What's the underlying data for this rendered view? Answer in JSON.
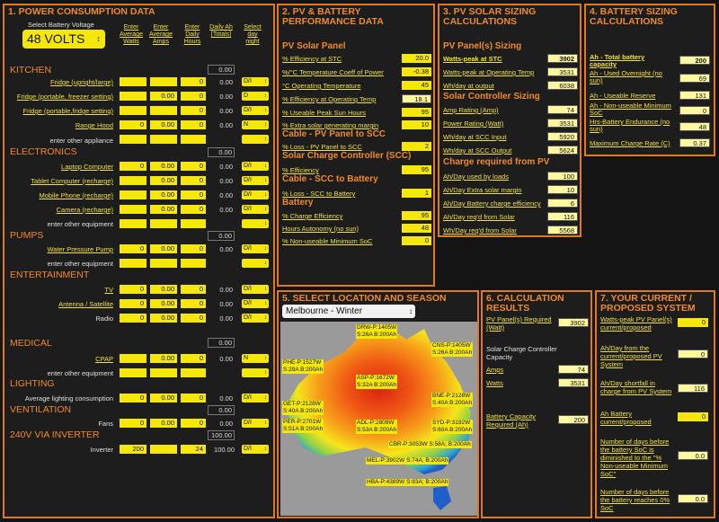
{
  "p1": {
    "title": "1. POWER CONSUMPTION DATA",
    "voltage_label": "Select Battery Voltage",
    "voltage_value": "48 VOLTS",
    "headers": [
      "Enter Average Watts",
      "Enter Average Amps",
      "Enter Daily Hours",
      "Daily Ah [Totals]",
      "Select day night"
    ],
    "sections": {
      "kitchen": "KITCHEN",
      "electronics": "ELECTRONICS",
      "pumps": "PUMPS",
      "entertainment": "ENTERTAINMENT",
      "medical": "MEDICAL",
      "lighting": "LIGHTING",
      "ventilation": "VENTILATION",
      "inverter": "240V via INVERTER"
    },
    "totals": {
      "kitchen": "0.00",
      "electronics": "0.00",
      "pumps": "0.00",
      "entertainment": "0.00",
      "medical": "0.00",
      "lighting": "0.00",
      "ventilation": "0.00",
      "inverter": "100.00"
    },
    "rows": {
      "r1": {
        "label": "Fridge (upright/large)",
        "amps": "",
        "hours": "0",
        "ah": "0.00",
        "sel": "D/I"
      },
      "r2": {
        "label": "Fridge (portable, freezer setting)",
        "amps": "0.00",
        "hours": "0",
        "ah": "0.00",
        "sel": "D"
      },
      "r3": {
        "label": "Fridge (portable,fridge setting)",
        "amps": "",
        "hours": "0",
        "ah": "0.00",
        "sel": "D/I"
      },
      "r4": {
        "label": "Range Hood",
        "watts": "0",
        "amps": "0.00",
        "hours": "0",
        "ah": "0.00",
        "sel": "N"
      },
      "r5": {
        "label": "enter other appliance"
      },
      "r6": {
        "label": "Laptop Computer",
        "watts": "0",
        "amps": "0.00",
        "hours": "0",
        "ah": "0.00",
        "sel": "D/I"
      },
      "r7": {
        "label": "Tablet Computer (recharge)",
        "amps": "0.00",
        "hours": "0",
        "ah": "0.00",
        "sel": "D/I"
      },
      "r8": {
        "label": "Mobile Phone (recharge)",
        "amps": "0.00",
        "hours": "0",
        "ah": "0.00",
        "sel": "D/I"
      },
      "r9": {
        "label": "Camera (recharge)",
        "amps": "0.00",
        "hours": "0",
        "ah": "0.00",
        "sel": "D/I"
      },
      "r10": {
        "label": "enter other equipment"
      },
      "r11": {
        "label": "Water Pressure Pump",
        "watts": "0",
        "amps": "0.00",
        "hours": "0",
        "ah": "0.00",
        "sel": "D/I"
      },
      "r12": {
        "label": "enter other equipment"
      },
      "r13": {
        "label": "TV",
        "watts": "0",
        "amps": "0.00",
        "hours": "0",
        "ah": "0.00",
        "sel": "D/I"
      },
      "r14": {
        "label": "Antenna / Satellite",
        "watts": "0",
        "amps": "0.00",
        "hours": "0",
        "ah": "0.00",
        "sel": "D/I"
      },
      "r15": {
        "label": "Radio",
        "watts": "0",
        "amps": "0.00",
        "hours": "0",
        "ah": "0.00",
        "sel": "D/I"
      },
      "r16": {
        "label": "CPAP",
        "amps": "0.00",
        "hours": "0",
        "ah": "0.00",
        "sel": "N"
      },
      "r17": {
        "label": "enter other equipment"
      },
      "r18": {
        "label": "Average lighting consumption",
        "watts": "0",
        "amps": "0.00",
        "hours": "0",
        "ah": "0.00",
        "sel": "D/I"
      },
      "r19": {
        "label": "Fans",
        "watts": "0",
        "amps": "0.00",
        "hours": "0",
        "ah": "0.00",
        "sel": "D/I"
      },
      "r20": {
        "label": "Inverter",
        "watts": "200",
        "hours": "24",
        "ah": "100.00",
        "sel": "D/I"
      }
    }
  },
  "p2": {
    "title": "2. PV & BATTERY PERFORMANCE DATA",
    "pv_head": "PV Solar Panel",
    "pv": [
      {
        "label": "% Efficiency at STC",
        "value": "20.0"
      },
      {
        "label": "%/°C Temperature Coeff of Power",
        "value": "-0.38"
      },
      {
        "label": "°C Operating Temperature",
        "value": "45"
      },
      {
        "label": "% Efficiency at Operating Temp",
        "value": "18.1"
      },
      {
        "label": "% Useable Peak Sun Hours",
        "value": "95"
      },
      {
        "label": "% Extra solar generating margin",
        "value": "10"
      }
    ],
    "cable1_head": "Cable - PV Panel to SCC",
    "cable1": {
      "label": "% Loss - PV Panel to SCC",
      "value": "2"
    },
    "scc_head": "Solar Charge Controller (SCC)",
    "scc": {
      "label": "% Efficiency",
      "value": "95"
    },
    "cable2_head": "Cable - SCC to Battery",
    "cable2": {
      "label": "% Loss - SCC to Battery",
      "value": "1"
    },
    "batt_head": "Battery",
    "batt": [
      {
        "label": "% Charge Efficiency",
        "value": "95"
      },
      {
        "label": "Hours Autonomy (no sun)",
        "value": "48"
      },
      {
        "label": "% Non-useable Minimum SoC",
        "value": "0"
      }
    ]
  },
  "p3": {
    "title": "3. PV SOLAR SIZING CALCULATIONS",
    "pv_head": "PV Panel(s) Sizing",
    "pv": [
      {
        "label": "Watts-peak at STC",
        "value": "3902"
      },
      {
        "label": "Watts-peak at Operating Temp",
        "value": "3531"
      },
      {
        "label": "Wh/day at output",
        "value": "6038"
      }
    ],
    "scc_head": "Solar Controller Sizing",
    "scc": [
      {
        "label": "Amp Rating (Amp)",
        "value": "74"
      },
      {
        "label": "Power Rating (Watt)",
        "value": "3531"
      },
      {
        "label": "Wh/day at SCC Input",
        "value": "5920"
      },
      {
        "label": "Wh/day at SCC Output",
        "value": "5624"
      }
    ],
    "charge_head": "Charge required from PV",
    "charge": [
      {
        "label": "Ah/Day used by loads",
        "value": "100"
      },
      {
        "label": "Ah/Day Extra solar margin",
        "value": "10"
      },
      {
        "label": "Ah/Day Battery charge efficiency",
        "value": "6"
      },
      {
        "label": "Ah/Day req'd from Solar",
        "value": "116"
      },
      {
        "label": "Wh/Day req'd from Solar",
        "value": "5568"
      }
    ]
  },
  "p4": {
    "title": "4. BATTERY SIZING CALCULATIONS",
    "rows": [
      {
        "label": "Ah - Total battery capacity",
        "value": "200"
      },
      {
        "label": "Ah - Used Overnight (no sun)",
        "value": "69"
      },
      {
        "label": "Ah - Useable Reserve",
        "value": "131"
      },
      {
        "label": "Ah - Non-useable Minimum SoC",
        "value": "0"
      },
      {
        "label": "Hrs-Battery Endurance (no sun)",
        "value": "48"
      },
      {
        "label": "Maximum Charge Rate (C)",
        "value": "0.37"
      }
    ]
  },
  "p5": {
    "title": "5. SELECT LOCATION AND SEASON",
    "location": "Melbourne - Winter",
    "map_labels": [
      {
        "a": "DRW-P:1405W",
        "b": "S:26A B:200Ah"
      },
      {
        "a": "CNS-P:1405W",
        "b": "S:26A B:200Ah"
      },
      {
        "a": "PHE-P:1527W",
        "b": "S:29A B:200Ah"
      },
      {
        "a": "ASP-P:1672W",
        "b": "S:32A B:200Ah"
      },
      {
        "a": "BNE-P:2128W",
        "b": "S:40A B:200Ah"
      },
      {
        "a": "GET-P:2128W",
        "b": "S:40A B:200Ah"
      },
      {
        "a": "PER-P:2701W",
        "b": "S:51A B:200Ah"
      },
      {
        "a": "ADL-P:2809W",
        "b": "S:53A B:200Ah"
      },
      {
        "a": "SYD-P:3192W",
        "b": "S:60A B:200Ah"
      },
      {
        "a": "CBR-P:3053W S:58A; B:200Ah",
        "b": ""
      },
      {
        "a": "MEL-P:3902W S:74A; B:200Ah",
        "b": ""
      },
      {
        "a": "HBA-P:4389W S:83A; B:200Ah",
        "b": ""
      }
    ]
  },
  "p6": {
    "title": "6. CALCULATION RESULTS",
    "pv_label": "PV Panel(s) Required (Watt)",
    "pv_value": "3902",
    "scc_label": "Solar Charge Controller Capacity",
    "amps_label": "Amps",
    "amps_value": "74",
    "watts_label": "Watts",
    "watts_value": "3531",
    "batt_label": "Battery Capacity Required (Ah)",
    "batt_value": "200"
  },
  "p7": {
    "title": "7. YOUR CURRENT / PROPOSED SYSTEM",
    "rows": [
      {
        "label": "Watts-peak PV Panel(s) current/proposed",
        "value": "0"
      },
      {
        "label": "Ah/Day from the current/proposed PV System",
        "value": "0"
      },
      {
        "label": "Ah/Day shortfall in charge from PV System",
        "value": "116"
      },
      {
        "label": "Ah Battery current/proposed",
        "value": "0"
      },
      {
        "label": "Number of days before the battery SoC is diminished to the \"% Non-useable Minimum SoC\"",
        "value": "0.0"
      },
      {
        "label": "Number of days before the battery reaches 0% SoC",
        "value": "0.0"
      }
    ]
  },
  "colors": {
    "accent": "#e07a1f",
    "field": "#f5e70a",
    "label": "#f0e040",
    "bg": "#141414"
  }
}
